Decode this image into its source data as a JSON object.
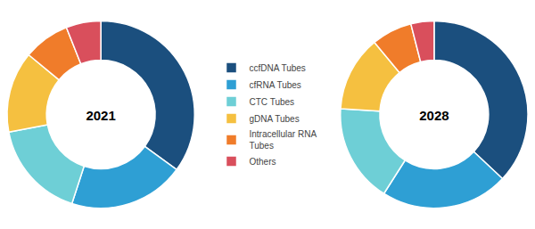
{
  "chart_data": [
    {
      "type": "pie",
      "title": "2021",
      "categories": [
        "ccfDNA Tubes",
        "cfRNA Tubes",
        "CTC Tubes",
        "gDNA Tubes",
        "Intracellular RNA\nTubes",
        "Others"
      ],
      "values": [
        35,
        20,
        17,
        14,
        8,
        6
      ],
      "colors": [
        "#1b4f7e",
        "#2e9fd4",
        "#6ecfd6",
        "#f5c040",
        "#f07c2a",
        "#d94f5c"
      ],
      "legend": "center"
    },
    {
      "type": "pie",
      "title": "2028",
      "categories": [
        "ccfDNA Tubes",
        "cfRNA Tubes",
        "CTC Tubes",
        "gDNA Tubes",
        "Intracellular RNA\nTubes",
        "Others"
      ],
      "values": [
        37,
        22,
        17,
        13,
        7,
        4
      ],
      "colors": [
        "#1b4f7e",
        "#2e9fd4",
        "#6ecfd6",
        "#f5c040",
        "#f07c2a",
        "#d94f5c"
      ]
    }
  ]
}
